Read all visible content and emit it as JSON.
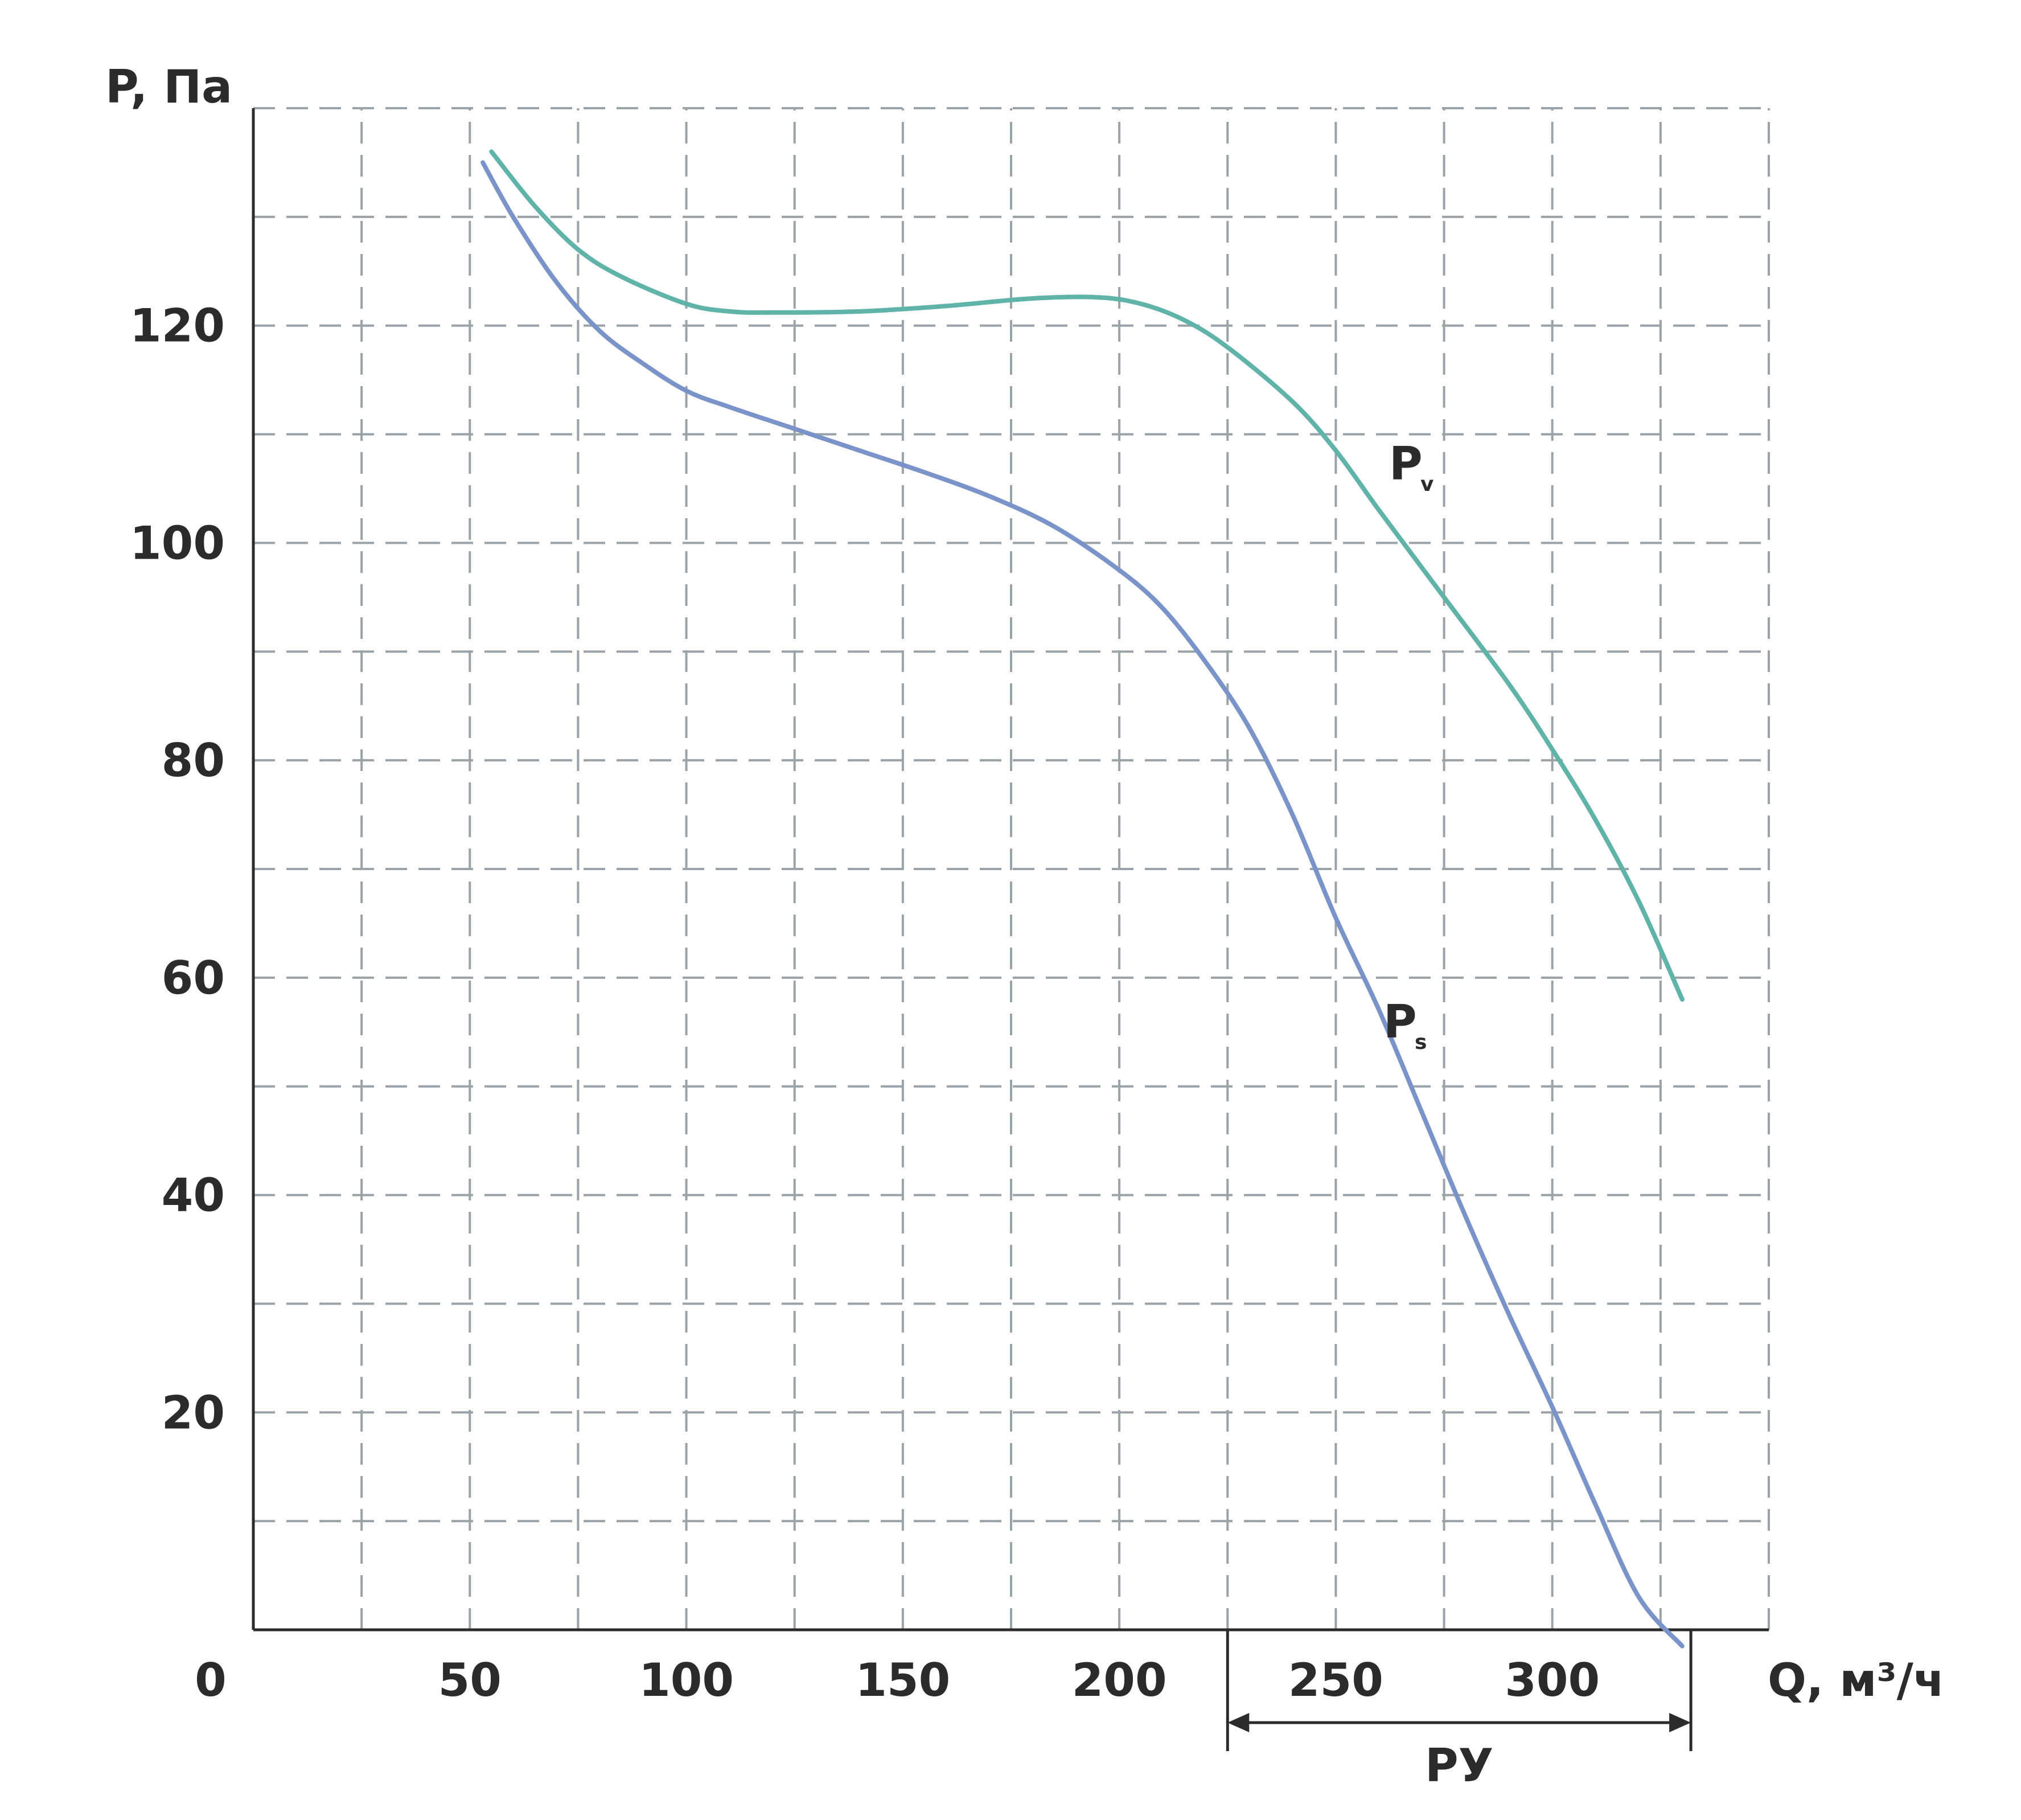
{
  "chart_data": {
    "type": "line",
    "xlabel": "Q, м³/ч",
    "ylabel": "P, Па",
    "origin_label": "0",
    "xlim": [
      0,
      350
    ],
    "ylim": [
      0,
      140
    ],
    "x_ticks": [
      50,
      100,
      150,
      200,
      250,
      300
    ],
    "y_ticks": [
      20,
      40,
      60,
      80,
      100,
      120
    ],
    "grid": true,
    "grid_x_step": 25,
    "grid_y_step": 10,
    "series": [
      {
        "name": "Pv",
        "label_main": "P",
        "label_sub": "v",
        "color": "#5fb3a8",
        "x": [
          55,
          65,
          75,
          85,
          100,
          110,
          120,
          140,
          160,
          180,
          195,
          205,
          215,
          225,
          240,
          250,
          260,
          275,
          290,
          300,
          310,
          320,
          330
        ],
        "y": [
          136,
          131,
          127,
          124.5,
          122,
          121.3,
          121.2,
          121.3,
          121.8,
          122.5,
          122.6,
          122,
          120.5,
          118,
          113,
          108.5,
          103,
          95,
          87,
          81,
          74.5,
          67,
          58
        ]
      },
      {
        "name": "Ps",
        "label_main": "P",
        "label_sub": "s",
        "color": "#7a93c8",
        "x": [
          53,
          60,
          70,
          80,
          90,
          100,
          110,
          125,
          140,
          155,
          170,
          185,
          200,
          210,
          220,
          230,
          240,
          250,
          260,
          270,
          280,
          290,
          300,
          310,
          320,
          330
        ],
        "y": [
          135,
          130,
          124,
          119.5,
          116.5,
          114,
          112.5,
          110.5,
          108.5,
          106.5,
          104.3,
          101.5,
          97.5,
          94,
          89,
          83,
          75,
          65.5,
          57,
          47.5,
          38,
          29,
          20.5,
          11.5,
          3,
          -1.5
        ]
      }
    ],
    "range_marker": {
      "label": "РУ",
      "from": 225,
      "to": 332
    }
  }
}
